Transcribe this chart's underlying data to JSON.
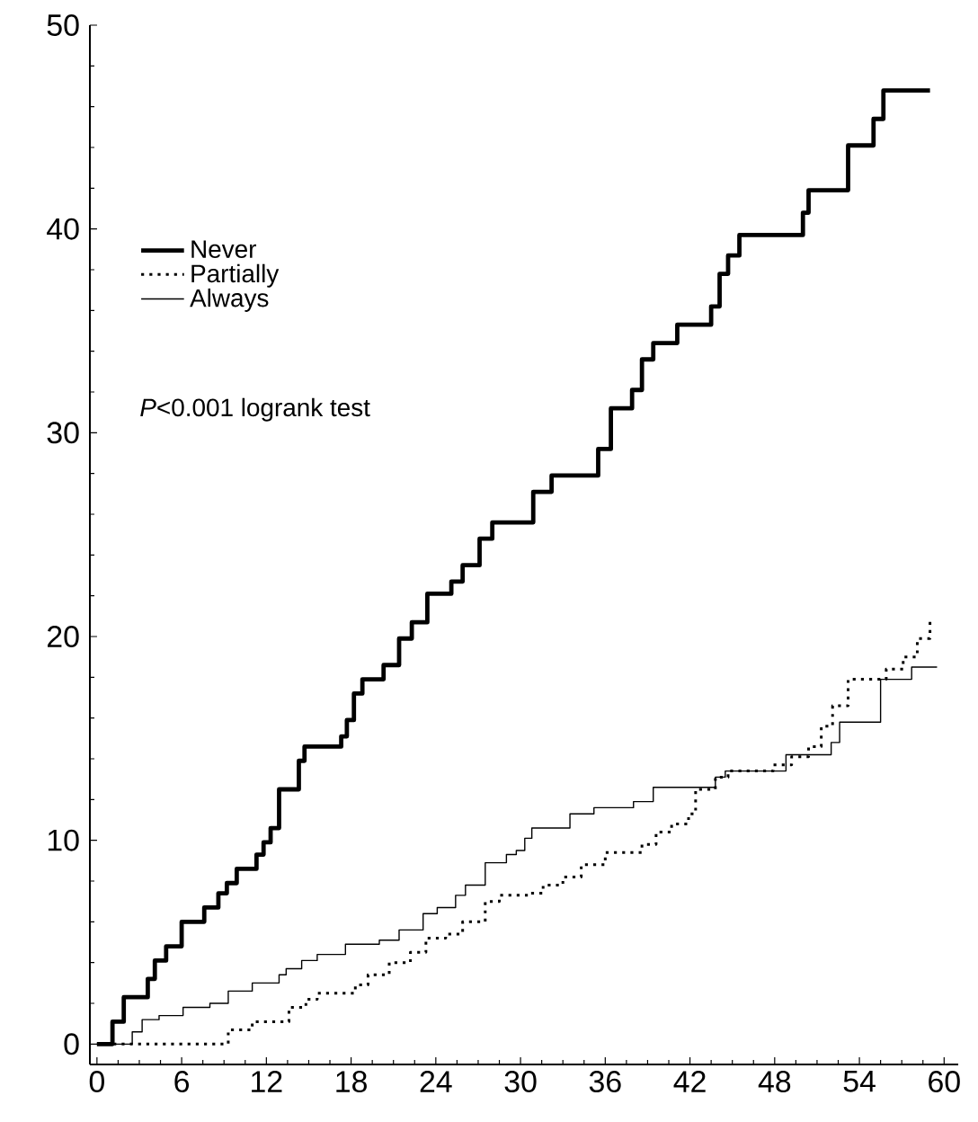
{
  "chart_data": {
    "type": "step",
    "xlim": [
      -0.5,
      61
    ],
    "ylim": [
      -1,
      50
    ],
    "xticks": [
      0,
      6,
      12,
      18,
      24,
      30,
      36,
      42,
      48,
      54,
      60
    ],
    "yticks": [
      0,
      10,
      20,
      30,
      40,
      50
    ],
    "legend": "top left",
    "annotations": [
      "*P*<0.001 logrank test"
    ],
    "series": [
      {
        "name": "Never",
        "color": "#000000",
        "line_style": "solid",
        "x": [
          0,
          1.1,
          1.9,
          3.6,
          4.1,
          4.9,
          6.0,
          7.6,
          8.6,
          9.2,
          9.9,
          11.3,
          11.8,
          12.3,
          12.9,
          14.3,
          14.7,
          17.3,
          17.7,
          18.2,
          18.8,
          20.3,
          21.4,
          22.3,
          23.4,
          25.1,
          25.9,
          27.1,
          28.0,
          30.9,
          32.2,
          35.5,
          36.4,
          37.9,
          38.6,
          39.4,
          41.1,
          43.5,
          44.1,
          44.7,
          45.5,
          50.0,
          50.4,
          53.2,
          55.0,
          55.7,
          58.3,
          59.0
        ],
        "values": [
          0,
          1.1,
          2.3,
          3.2,
          4.1,
          4.8,
          6.0,
          6.7,
          7.4,
          7.9,
          8.6,
          9.3,
          9.9,
          10.6,
          12.5,
          13.9,
          14.6,
          15.1,
          15.9,
          17.2,
          17.9,
          18.6,
          19.9,
          20.7,
          22.1,
          22.7,
          23.5,
          24.8,
          25.6,
          27.1,
          27.9,
          29.2,
          31.2,
          32.1,
          33.6,
          34.4,
          35.3,
          36.2,
          37.8,
          38.7,
          39.7,
          40.8,
          41.9,
          44.1,
          45.4,
          46.8,
          46.8,
          46.8
        ]
      },
      {
        "name": "Partially",
        "color": "#000000",
        "line_style": "dotted",
        "x": [
          0,
          9.3,
          11.0,
          13.6,
          14.8,
          15.6,
          18.3,
          19.2,
          20.7,
          22.2,
          23.3,
          24.7,
          25.9,
          27.5,
          28.5,
          30.7,
          31.6,
          33.0,
          34.3,
          36.0,
          38.6,
          39.6,
          40.7,
          41.9,
          42.4,
          43.8,
          44.7,
          47.9,
          49.2,
          50.4,
          51.3,
          52.1,
          53.2,
          55.9,
          57.1,
          58.1,
          59.0
        ],
        "values": [
          0,
          0.7,
          1.1,
          1.8,
          2.2,
          2.5,
          2.9,
          3.4,
          4.0,
          4.5,
          5.2,
          5.4,
          6.0,
          7.0,
          7.3,
          7.4,
          7.8,
          8.2,
          8.8,
          9.4,
          9.8,
          10.4,
          10.8,
          11.3,
          12.5,
          13.1,
          13.4,
          13.7,
          14.1,
          14.6,
          15.6,
          16.6,
          17.9,
          18.4,
          19.0,
          19.9,
          20.9
        ]
      },
      {
        "name": "Always",
        "color": "#000000",
        "line_style": "solid",
        "x": [
          0,
          2.5,
          3.2,
          4.4,
          6.1,
          8.0,
          9.3,
          11.0,
          12.9,
          13.4,
          14.5,
          15.6,
          17.6,
          20.0,
          21.4,
          23.1,
          24.1,
          25.4,
          26.1,
          27.5,
          29.0,
          29.7,
          30.3,
          30.8,
          33.5,
          35.2,
          38.0,
          39.4,
          43.8,
          44.5,
          48.8,
          52.0,
          52.6,
          55.5,
          57.7,
          59.5
        ],
        "values": [
          0,
          0.6,
          1.2,
          1.4,
          1.8,
          2.0,
          2.6,
          3.0,
          3.4,
          3.7,
          4.1,
          4.4,
          4.9,
          5.1,
          5.6,
          6.4,
          6.7,
          7.3,
          7.8,
          8.9,
          9.3,
          9.5,
          10.1,
          10.6,
          11.3,
          11.6,
          11.9,
          12.6,
          13.1,
          13.4,
          14.2,
          14.8,
          15.8,
          17.9,
          18.5,
          18.5
        ]
      }
    ]
  }
}
